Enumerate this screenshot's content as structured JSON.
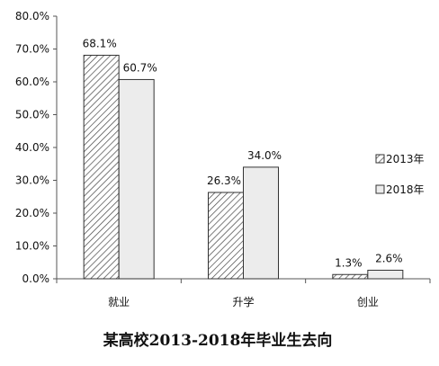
{
  "chart_data": {
    "type": "bar",
    "title": "某高校2013-2018年毕业生去向",
    "categories": [
      "就业",
      "升学",
      "创业"
    ],
    "series": [
      {
        "name": "2013年",
        "values": [
          68.1,
          26.3,
          1.3
        ],
        "labels": [
          "68.1%",
          "26.3%",
          "1.3%"
        ],
        "pattern": "diagonal-hatch"
      },
      {
        "name": "2018年",
        "values": [
          60.7,
          34.0,
          2.6
        ],
        "labels": [
          "60.7%",
          "34.0%",
          "2.6%"
        ],
        "pattern": "solid-light-gray"
      }
    ],
    "ylim": [
      0,
      80
    ],
    "yticks": [
      {
        "value": 0,
        "label": "0.0%"
      },
      {
        "value": 10,
        "label": "10.0%"
      },
      {
        "value": 20,
        "label": "20.0%"
      },
      {
        "value": 30,
        "label": "30.0%"
      },
      {
        "value": 40,
        "label": "40.0%"
      },
      {
        "value": 50,
        "label": "50.0%"
      },
      {
        "value": 60,
        "label": "60.0%"
      },
      {
        "value": 70,
        "label": "70.0%"
      },
      {
        "value": 80,
        "label": "80.0%"
      }
    ],
    "xlabel": "",
    "ylabel": "",
    "grid": false,
    "legend_position": "right"
  },
  "colors": {
    "axis": "#555555",
    "bar_outline": "#333333",
    "hatch_line": "#444444",
    "hatch_bg": "#ffffff",
    "solid_fill": "#ececec"
  }
}
